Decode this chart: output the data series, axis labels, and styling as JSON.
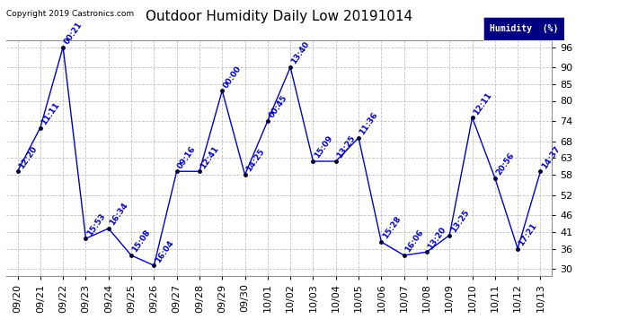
{
  "title": "Outdoor Humidity Daily Low 20191014",
  "copyright": "Copyright 2019 Castronics.com",
  "legend_label": "Humidity  (%)",
  "x_labels": [
    "09/20",
    "09/21",
    "09/22",
    "09/23",
    "09/24",
    "09/25",
    "09/26",
    "09/27",
    "09/28",
    "09/29",
    "09/30",
    "10/01",
    "10/02",
    "10/03",
    "10/04",
    "10/05",
    "10/06",
    "10/07",
    "10/08",
    "10/09",
    "10/10",
    "10/11",
    "10/12",
    "10/13"
  ],
  "y_values": [
    59,
    72,
    96,
    39,
    42,
    34,
    31,
    59,
    59,
    83,
    58,
    74,
    90,
    62,
    62,
    69,
    38,
    34,
    35,
    40,
    75,
    57,
    36,
    59
  ],
  "point_labels": [
    "12:20",
    "11:11",
    "00:21",
    "15:53",
    "16:34",
    "15:08",
    "16:04",
    "09:16",
    "12:41",
    "00:00",
    "14:25",
    "00:45",
    "13:40",
    "15:09",
    "13:25",
    "11:36",
    "15:28",
    "16:06",
    "13:20",
    "13:25",
    "12:11",
    "20:56",
    "17:21",
    "14:37"
  ],
  "line_color": "#0000cc",
  "marker_color": "#000033",
  "label_color": "#0000bb",
  "bg_color": "#ffffff",
  "grid_color": "#bbbbbb",
  "ylim_min": 28,
  "ylim_max": 98,
  "yticks": [
    30,
    36,
    41,
    46,
    52,
    58,
    63,
    68,
    74,
    80,
    85,
    90,
    96
  ],
  "legend_bg": "#000080",
  "legend_text_color": "#ffffff",
  "title_fontsize": 11,
  "label_fontsize": 6.5,
  "tick_fontsize": 8,
  "copyright_fontsize": 6.5
}
